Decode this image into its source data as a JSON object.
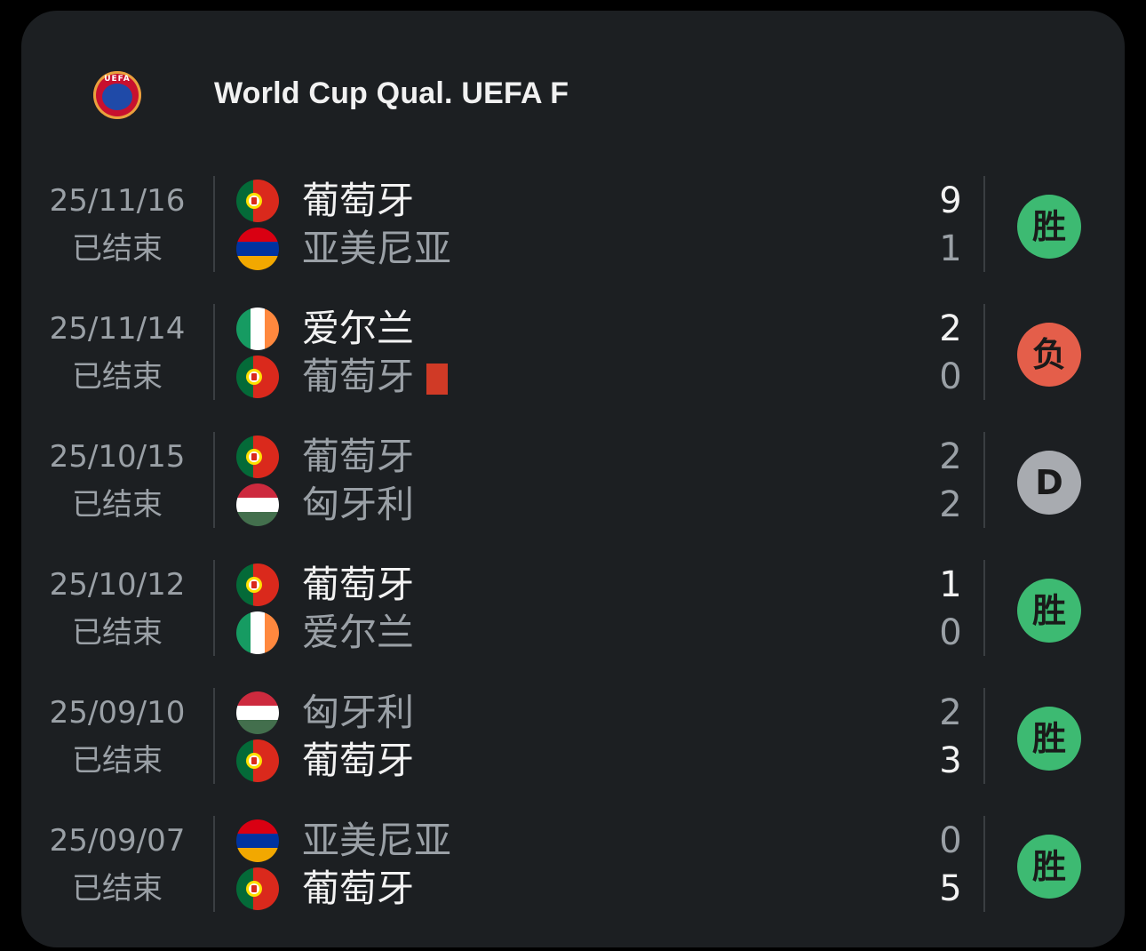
{
  "header": {
    "logo_text": "UEFA",
    "title": "World Cup Qual. UEFA F"
  },
  "colors": {
    "win": "#3dba72",
    "loss": "#e45e4a",
    "draw": "#a8abb0",
    "red_card": "#d03a26"
  },
  "matches": [
    {
      "date": "25/11/16",
      "status": "已结束",
      "home": {
        "name": "葡萄牙",
        "flag": "portugal-flag-icon",
        "score": "9",
        "winner": true
      },
      "away": {
        "name": "亚美尼亚",
        "flag": "armenia-flag-icon",
        "score": "1",
        "winner": false
      },
      "result": "胜",
      "result_type": "win"
    },
    {
      "date": "25/11/14",
      "status": "已结束",
      "home": {
        "name": "爱尔兰",
        "flag": "ireland-flag-icon",
        "score": "2",
        "winner": true
      },
      "away": {
        "name": "葡萄牙",
        "flag": "portugal-flag-icon",
        "score": "0",
        "winner": false,
        "red_card": true
      },
      "result": "负",
      "result_type": "loss"
    },
    {
      "date": "25/10/15",
      "status": "已结束",
      "home": {
        "name": "葡萄牙",
        "flag": "portugal-flag-icon",
        "score": "2",
        "winner": false
      },
      "away": {
        "name": "匈牙利",
        "flag": "hungary-flag-icon",
        "score": "2",
        "winner": false
      },
      "result": "D",
      "result_type": "draw"
    },
    {
      "date": "25/10/12",
      "status": "已结束",
      "home": {
        "name": "葡萄牙",
        "flag": "portugal-flag-icon",
        "score": "1",
        "winner": true
      },
      "away": {
        "name": "爱尔兰",
        "flag": "ireland-flag-icon",
        "score": "0",
        "winner": false
      },
      "result": "胜",
      "result_type": "win"
    },
    {
      "date": "25/09/10",
      "status": "已结束",
      "home": {
        "name": "匈牙利",
        "flag": "hungary-flag-icon",
        "score": "2",
        "winner": false
      },
      "away": {
        "name": "葡萄牙",
        "flag": "portugal-flag-icon",
        "score": "3",
        "winner": true
      },
      "result": "胜",
      "result_type": "win"
    },
    {
      "date": "25/09/07",
      "status": "已结束",
      "home": {
        "name": "亚美尼亚",
        "flag": "armenia-flag-icon",
        "score": "0",
        "winner": false
      },
      "away": {
        "name": "葡萄牙",
        "flag": "portugal-flag-icon",
        "score": "5",
        "winner": true
      },
      "result": "胜",
      "result_type": "win"
    }
  ]
}
